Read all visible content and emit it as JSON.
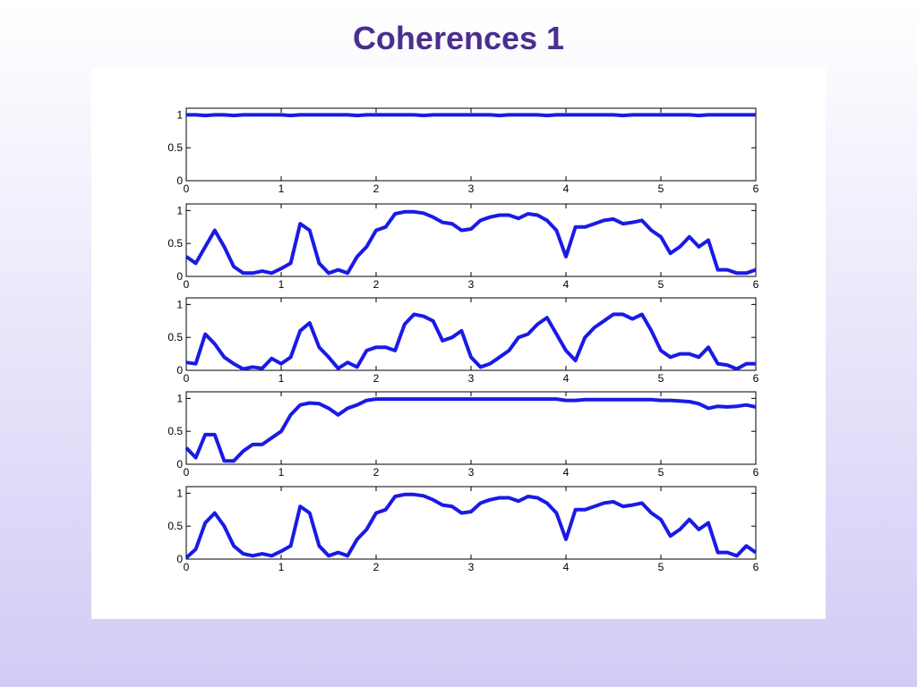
{
  "title": "Coherences 1",
  "chart_data": [
    {
      "type": "line",
      "x": [
        0,
        0.1,
        0.2,
        0.3,
        0.4,
        0.5,
        0.6,
        0.7,
        0.8,
        0.9,
        1,
        1.1,
        1.2,
        1.3,
        1.4,
        1.5,
        1.6,
        1.7,
        1.8,
        1.9,
        2,
        2.1,
        2.2,
        2.3,
        2.4,
        2.5,
        2.6,
        2.7,
        2.8,
        2.9,
        3,
        3.1,
        3.2,
        3.3,
        3.4,
        3.5,
        3.6,
        3.7,
        3.8,
        3.9,
        4,
        4.1,
        4.2,
        4.3,
        4.4,
        4.5,
        4.6,
        4.7,
        4.8,
        4.9,
        5,
        5.1,
        5.2,
        5.3,
        5.4,
        5.5,
        5.6,
        5.7,
        5.8,
        5.9,
        6
      ],
      "series": [
        {
          "color": "#1a1ae6",
          "values": [
            1,
            1,
            0.99,
            1,
            1,
            0.99,
            1,
            1,
            1,
            1,
            1,
            0.99,
            1,
            1,
            1,
            1,
            1,
            1,
            0.99,
            1,
            1,
            1,
            1,
            1,
            1,
            0.99,
            1,
            1,
            1,
            1,
            1,
            1,
            1,
            0.99,
            1,
            1,
            1,
            1,
            0.99,
            1,
            1,
            1,
            1,
            1,
            1,
            1,
            0.99,
            1,
            1,
            1,
            1,
            1,
            1,
            1,
            0.99,
            1,
            1,
            1,
            1,
            1,
            1
          ]
        }
      ],
      "xlim": [
        0,
        6
      ],
      "ylim": [
        0,
        1.1
      ],
      "xticks": [
        0,
        1,
        2,
        3,
        4,
        5,
        6
      ],
      "yticks": [
        0,
        0.5,
        1
      ]
    },
    {
      "type": "line",
      "x": [
        0,
        0.1,
        0.2,
        0.3,
        0.4,
        0.5,
        0.6,
        0.7,
        0.8,
        0.9,
        1,
        1.1,
        1.2,
        1.3,
        1.4,
        1.5,
        1.6,
        1.7,
        1.8,
        1.9,
        2,
        2.1,
        2.2,
        2.3,
        2.4,
        2.5,
        2.6,
        2.7,
        2.8,
        2.9,
        3,
        3.1,
        3.2,
        3.3,
        3.4,
        3.5,
        3.6,
        3.7,
        3.8,
        3.9,
        4,
        4.1,
        4.2,
        4.3,
        4.4,
        4.5,
        4.6,
        4.7,
        4.8,
        4.9,
        5,
        5.1,
        5.2,
        5.3,
        5.4,
        5.5,
        5.6,
        5.7,
        5.8,
        5.9,
        6
      ],
      "series": [
        {
          "color": "#1a1ae6",
          "values": [
            0.3,
            0.2,
            0.45,
            0.7,
            0.45,
            0.15,
            0.05,
            0.05,
            0.08,
            0.05,
            0.12,
            0.2,
            0.8,
            0.7,
            0.2,
            0.05,
            0.1,
            0.05,
            0.3,
            0.45,
            0.7,
            0.75,
            0.95,
            0.98,
            0.98,
            0.96,
            0.9,
            0.82,
            0.8,
            0.7,
            0.72,
            0.85,
            0.9,
            0.93,
            0.93,
            0.88,
            0.95,
            0.93,
            0.85,
            0.7,
            0.3,
            0.75,
            0.75,
            0.8,
            0.85,
            0.87,
            0.8,
            0.82,
            0.85,
            0.7,
            0.6,
            0.35,
            0.45,
            0.6,
            0.45,
            0.55,
            0.1,
            0.1,
            0.05,
            0.05,
            0.1
          ]
        }
      ],
      "xlim": [
        0,
        6
      ],
      "ylim": [
        0,
        1.1
      ],
      "xticks": [
        0,
        1,
        2,
        3,
        4,
        5,
        6
      ],
      "yticks": [
        0,
        0.5,
        1
      ]
    },
    {
      "type": "line",
      "x": [
        0,
        0.1,
        0.2,
        0.3,
        0.4,
        0.5,
        0.6,
        0.7,
        0.8,
        0.9,
        1,
        1.1,
        1.2,
        1.3,
        1.4,
        1.5,
        1.6,
        1.7,
        1.8,
        1.9,
        2,
        2.1,
        2.2,
        2.3,
        2.4,
        2.5,
        2.6,
        2.7,
        2.8,
        2.9,
        3,
        3.1,
        3.2,
        3.3,
        3.4,
        3.5,
        3.6,
        3.7,
        3.8,
        3.9,
        4,
        4.1,
        4.2,
        4.3,
        4.4,
        4.5,
        4.6,
        4.7,
        4.8,
        4.9,
        5,
        5.1,
        5.2,
        5.3,
        5.4,
        5.5,
        5.6,
        5.7,
        5.8,
        5.9,
        6
      ],
      "series": [
        {
          "color": "#1a1ae6",
          "values": [
            0.12,
            0.1,
            0.55,
            0.4,
            0.2,
            0.1,
            0.02,
            0.05,
            0.03,
            0.18,
            0.1,
            0.2,
            0.6,
            0.72,
            0.35,
            0.2,
            0.03,
            0.12,
            0.05,
            0.3,
            0.35,
            0.35,
            0.3,
            0.7,
            0.85,
            0.82,
            0.75,
            0.45,
            0.5,
            0.6,
            0.2,
            0.05,
            0.1,
            0.2,
            0.3,
            0.5,
            0.55,
            0.7,
            0.8,
            0.55,
            0.3,
            0.15,
            0.5,
            0.65,
            0.75,
            0.85,
            0.85,
            0.78,
            0.85,
            0.6,
            0.3,
            0.2,
            0.25,
            0.25,
            0.2,
            0.35,
            0.1,
            0.08,
            0.02,
            0.1,
            0.1
          ]
        }
      ],
      "xlim": [
        0,
        6
      ],
      "ylim": [
        0,
        1.1
      ],
      "xticks": [
        0,
        1,
        2,
        3,
        4,
        5,
        6
      ],
      "yticks": [
        0,
        0.5,
        1
      ]
    },
    {
      "type": "line",
      "x": [
        0,
        0.1,
        0.2,
        0.3,
        0.4,
        0.5,
        0.6,
        0.7,
        0.8,
        0.9,
        1,
        1.1,
        1.2,
        1.3,
        1.4,
        1.5,
        1.6,
        1.7,
        1.8,
        1.9,
        2,
        2.1,
        2.2,
        2.3,
        2.4,
        2.5,
        2.6,
        2.7,
        2.8,
        2.9,
        3,
        3.1,
        3.2,
        3.3,
        3.4,
        3.5,
        3.6,
        3.7,
        3.8,
        3.9,
        4,
        4.1,
        4.2,
        4.3,
        4.4,
        4.5,
        4.6,
        4.7,
        4.8,
        4.9,
        5,
        5.1,
        5.2,
        5.3,
        5.4,
        5.5,
        5.6,
        5.7,
        5.8,
        5.9,
        6
      ],
      "series": [
        {
          "color": "#1a1ae6",
          "values": [
            0.25,
            0.1,
            0.45,
            0.45,
            0.05,
            0.05,
            0.2,
            0.3,
            0.3,
            0.4,
            0.5,
            0.75,
            0.9,
            0.93,
            0.92,
            0.85,
            0.75,
            0.85,
            0.9,
            0.97,
            0.99,
            0.99,
            0.99,
            0.99,
            0.99,
            0.99,
            0.99,
            0.99,
            0.99,
            0.99,
            0.99,
            0.99,
            0.99,
            0.99,
            0.99,
            0.99,
            0.99,
            0.99,
            0.99,
            0.99,
            0.97,
            0.97,
            0.98,
            0.98,
            0.98,
            0.98,
            0.98,
            0.98,
            0.98,
            0.98,
            0.97,
            0.97,
            0.96,
            0.95,
            0.92,
            0.85,
            0.88,
            0.87,
            0.88,
            0.9,
            0.87
          ]
        }
      ],
      "xlim": [
        0,
        6
      ],
      "ylim": [
        0,
        1.1
      ],
      "xticks": [
        0,
        1,
        2,
        3,
        4,
        5,
        6
      ],
      "yticks": [
        0,
        0.5,
        1
      ]
    },
    {
      "type": "line",
      "x": [
        0,
        0.1,
        0.2,
        0.3,
        0.4,
        0.5,
        0.6,
        0.7,
        0.8,
        0.9,
        1,
        1.1,
        1.2,
        1.3,
        1.4,
        1.5,
        1.6,
        1.7,
        1.8,
        1.9,
        2,
        2.1,
        2.2,
        2.3,
        2.4,
        2.5,
        2.6,
        2.7,
        2.8,
        2.9,
        3,
        3.1,
        3.2,
        3.3,
        3.4,
        3.5,
        3.6,
        3.7,
        3.8,
        3.9,
        4,
        4.1,
        4.2,
        4.3,
        4.4,
        4.5,
        4.6,
        4.7,
        4.8,
        4.9,
        5,
        5.1,
        5.2,
        5.3,
        5.4,
        5.5,
        5.6,
        5.7,
        5.8,
        5.9,
        6
      ],
      "series": [
        {
          "color": "#1a1ae6",
          "values": [
            0.02,
            0.15,
            0.55,
            0.7,
            0.5,
            0.2,
            0.08,
            0.05,
            0.08,
            0.05,
            0.12,
            0.2,
            0.8,
            0.7,
            0.2,
            0.05,
            0.1,
            0.05,
            0.3,
            0.45,
            0.7,
            0.75,
            0.95,
            0.98,
            0.98,
            0.96,
            0.9,
            0.82,
            0.8,
            0.7,
            0.72,
            0.85,
            0.9,
            0.93,
            0.93,
            0.88,
            0.95,
            0.93,
            0.85,
            0.7,
            0.3,
            0.75,
            0.75,
            0.8,
            0.85,
            0.87,
            0.8,
            0.82,
            0.85,
            0.7,
            0.6,
            0.35,
            0.45,
            0.6,
            0.45,
            0.55,
            0.1,
            0.1,
            0.05,
            0.2,
            0.1
          ]
        }
      ],
      "xlim": [
        0,
        6
      ],
      "ylim": [
        0,
        1.1
      ],
      "xticks": [
        0,
        1,
        2,
        3,
        4,
        5,
        6
      ],
      "yticks": [
        0,
        0.5,
        1
      ]
    }
  ]
}
